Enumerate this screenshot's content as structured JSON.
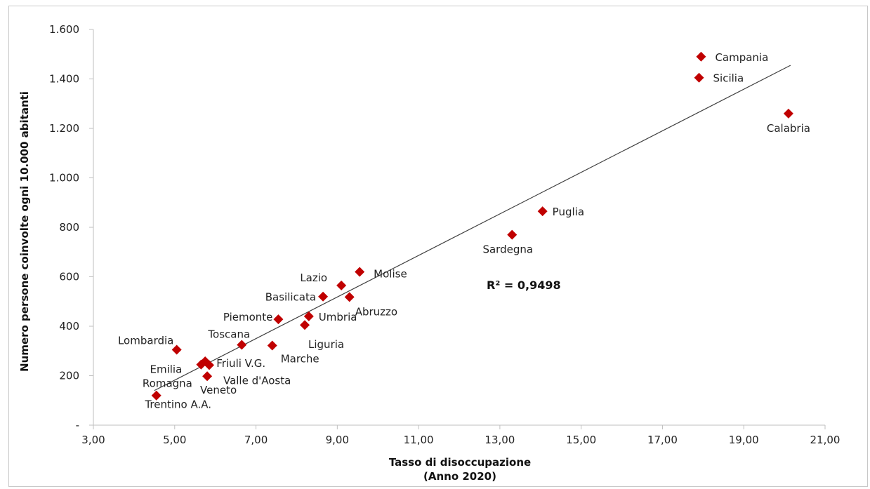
{
  "chart_data": {
    "type": "scatter",
    "xlabel_line1": "Tasso di disoccupazione",
    "xlabel_line2": "(Anno 2020)",
    "ylabel": "Numero persone coinvolte ogni 10.000 abitanti",
    "xlim": [
      3,
      21
    ],
    "ylim": [
      0,
      1600
    ],
    "x_ticks": [
      3,
      5,
      7,
      9,
      11,
      13,
      15,
      17,
      19,
      21
    ],
    "x_tick_labels": [
      "3,00",
      "5,00",
      "7,00",
      "9,00",
      "11,00",
      "13,00",
      "15,00",
      "17,00",
      "19,00",
      "21,00"
    ],
    "y_ticks": [
      0,
      200,
      400,
      600,
      800,
      1000,
      1200,
      1400,
      1600
    ],
    "y_tick_labels": [
      "-",
      "200",
      "400",
      "600",
      "800",
      "1.000",
      "1.200",
      "1.400",
      "1.600"
    ],
    "grid": false,
    "marker_color": "#c00000",
    "trendline": {
      "x1": 4.5,
      "y1": 140,
      "x2": 20.15,
      "y2": 1455,
      "color": "#404040"
    },
    "r_squared_label": "R² = 0,9498",
    "points": [
      {
        "label": "Campania",
        "x": 17.95,
        "y": 1490
      },
      {
        "label": "Sicilia",
        "x": 17.9,
        "y": 1405
      },
      {
        "label": "Calabria",
        "x": 20.1,
        "y": 1260
      },
      {
        "label": "Puglia",
        "x": 14.05,
        "y": 865
      },
      {
        "label": "Sardegna",
        "x": 13.3,
        "y": 770
      },
      {
        "label": "Molise",
        "x": 9.55,
        "y": 620
      },
      {
        "label": "Lazio",
        "x": 9.1,
        "y": 565
      },
      {
        "label": "Basilicata",
        "x": 8.65,
        "y": 520
      },
      {
        "label": "Abruzzo",
        "x": 9.3,
        "y": 518
      },
      {
        "label": "Umbria",
        "x": 8.3,
        "y": 440
      },
      {
        "label": "Piemonte",
        "x": 7.55,
        "y": 428
      },
      {
        "label": "Liguria",
        "x": 8.2,
        "y": 405
      },
      {
        "label": "Toscana",
        "x": 6.65,
        "y": 325
      },
      {
        "label": "Marche",
        "x": 7.4,
        "y": 322
      },
      {
        "label": "Lombardia",
        "x": 5.05,
        "y": 305
      },
      {
        "label": "Friuli V.G.",
        "x": 5.75,
        "y": 258
      },
      {
        "label": "Emilia Romagna",
        "x": 5.65,
        "y": 245
      },
      {
        "label": "Valle d'Aosta",
        "x": 5.85,
        "y": 243
      },
      {
        "label": "Veneto",
        "x": 5.8,
        "y": 198
      },
      {
        "label": "Trentino A.A.",
        "x": 4.55,
        "y": 120
      }
    ]
  }
}
